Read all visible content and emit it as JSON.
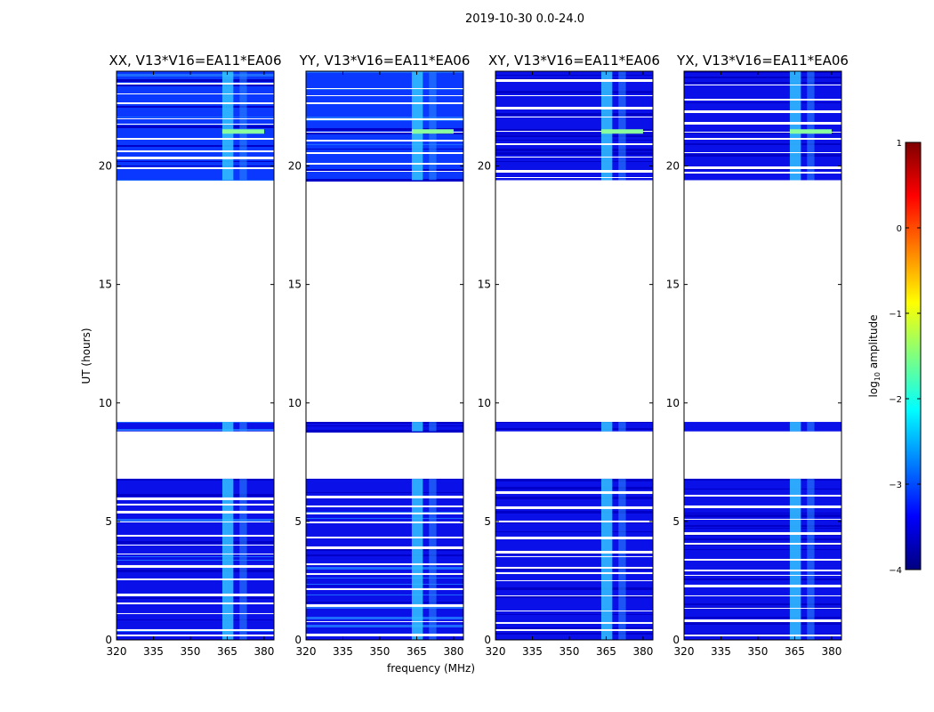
{
  "figure": {
    "suptitle": "2019-10-30 0.0-24.0"
  },
  "chart_data": {
    "type": "heatmap",
    "panels": [
      {
        "title": "XX, V13*V16=EA11*EA06",
        "xlabel": "",
        "ylabel": "UT (hours)"
      },
      {
        "title": "YY, V13*V16=EA11*EA06",
        "xlabel": "frequency (MHz)",
        "ylabel": ""
      },
      {
        "title": "XY, V13*V16=EA11*EA06",
        "xlabel": "",
        "ylabel": ""
      },
      {
        "title": "YX, V13*V16=EA11*EA06",
        "xlabel": "",
        "ylabel": ""
      }
    ],
    "x_ticks": [
      "320",
      "335",
      "350",
      "365",
      "380"
    ],
    "x_tick_values": [
      320,
      335,
      350,
      365,
      380
    ],
    "xlim": [
      320,
      384
    ],
    "y_ticks": [
      "0",
      "5",
      "10",
      "15",
      "20"
    ],
    "y_tick_values": [
      0,
      5,
      10,
      15,
      20
    ],
    "ylim": [
      0,
      24
    ],
    "data_blocks_ut_hours": [
      [
        0.0,
        6.8
      ],
      [
        8.8,
        9.2
      ],
      [
        19.4,
        24.0
      ]
    ],
    "rfi_band_mhz": [
      [
        363,
        367.5
      ],
      [
        370,
        373
      ]
    ],
    "colorbar": {
      "label": "log10 amplitude",
      "label_prefix": "log",
      "label_sub": "10",
      "label_suffix": " amplitude",
      "ticks": [
        "1",
        "0",
        "−1",
        "−2",
        "−3",
        "−4"
      ],
      "tick_values": [
        1,
        0,
        -1,
        -2,
        -3,
        -4
      ],
      "range": [
        -4,
        1
      ],
      "colormap": "jet",
      "colors": [
        "#00007f",
        "#0000ff",
        "#007fff",
        "#00ffff",
        "#7fff7f",
        "#ffff00",
        "#ff7f00",
        "#ff0000",
        "#7f0000"
      ]
    }
  }
}
